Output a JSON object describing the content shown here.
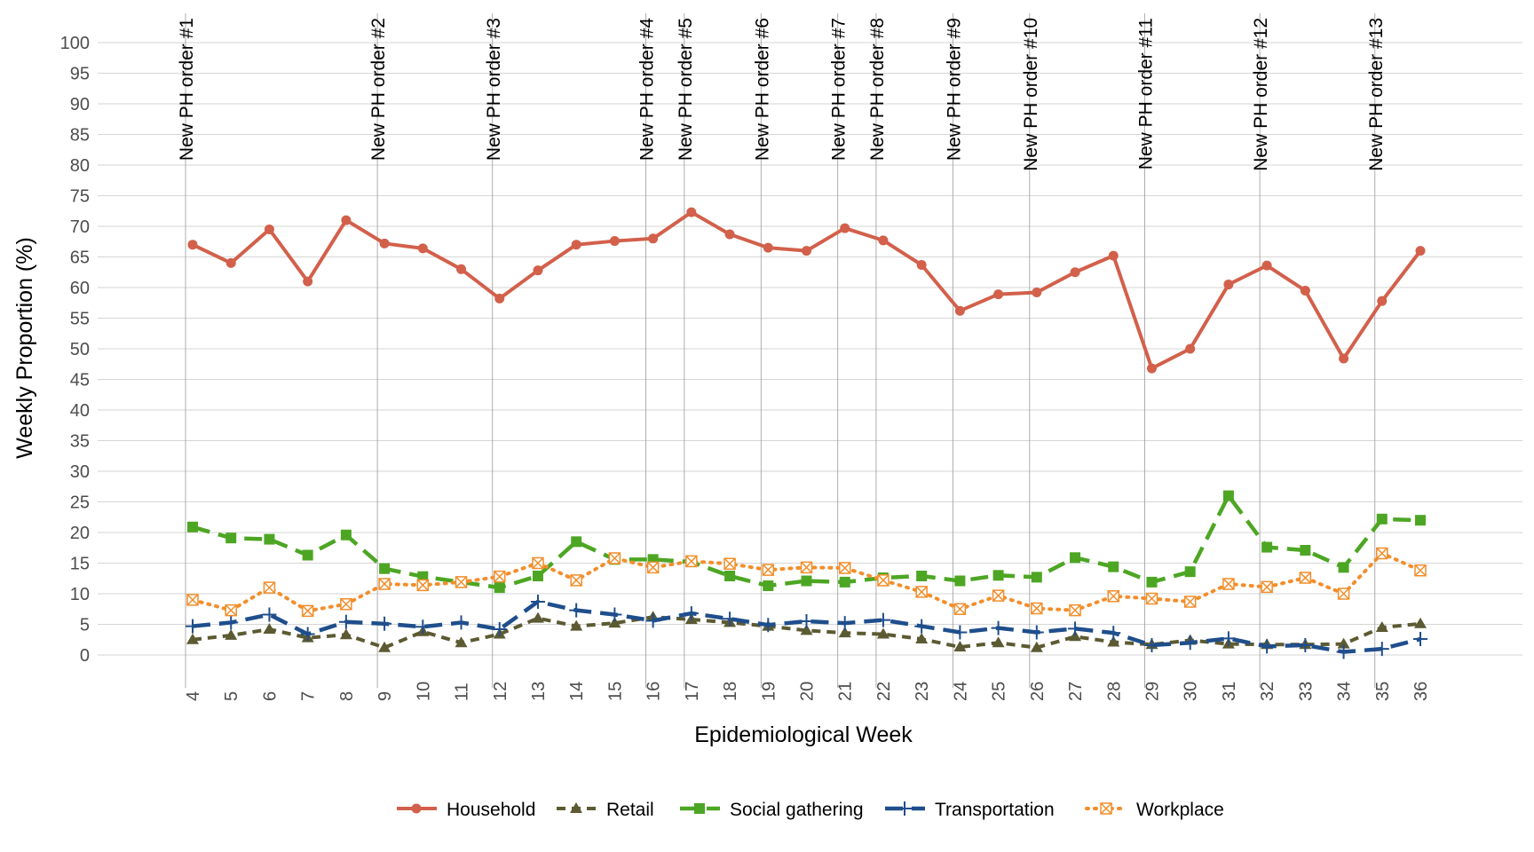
{
  "chart_data": {
    "type": "line",
    "xlabel": "Epidemiological Week",
    "ylabel": "Weekly Proportion (%)",
    "x": [
      4,
      5,
      6,
      7,
      8,
      9,
      10,
      11,
      12,
      13,
      14,
      15,
      16,
      17,
      18,
      19,
      20,
      21,
      22,
      23,
      24,
      25,
      26,
      27,
      28,
      29,
      30,
      31,
      32,
      33,
      34,
      35,
      36
    ],
    "xlim": [
      4,
      36
    ],
    "ylim": [
      -5,
      103
    ],
    "yticks": [
      0,
      5,
      10,
      15,
      20,
      25,
      30,
      35,
      40,
      45,
      50,
      55,
      60,
      65,
      70,
      75,
      80,
      85,
      90,
      95,
      100
    ],
    "grid": true,
    "legend_position": "bottom",
    "annotations": [
      {
        "x": 4,
        "label": "New PH order #1"
      },
      {
        "x": 9,
        "label": "New PH order #2"
      },
      {
        "x": 12,
        "label": "New PH order #3"
      },
      {
        "x": 16,
        "label": "New PH order #4"
      },
      {
        "x": 17,
        "label": "New PH order #5"
      },
      {
        "x": 19,
        "label": "New PH order #6"
      },
      {
        "x": 21,
        "label": "New PH order #7"
      },
      {
        "x": 22,
        "label": "New PH order #8"
      },
      {
        "x": 24,
        "label": "New PH order #9"
      },
      {
        "x": 26,
        "label": "New PH order #10"
      },
      {
        "x": 29,
        "label": "New PH order #11"
      },
      {
        "x": 32,
        "label": "New PH order #12"
      },
      {
        "x": 35,
        "label": "New PH order #13"
      }
    ],
    "series": [
      {
        "name": "Household",
        "color": "#D2604B",
        "marker": "circle",
        "dash": "solid",
        "values": [
          67,
          64,
          69.5,
          61,
          71,
          67.2,
          66.4,
          63,
          58.2,
          62.8,
          67,
          67.6,
          68,
          72.3,
          68.7,
          66.5,
          66,
          69.7,
          67.7,
          63.7,
          56.2,
          58.9,
          59.2,
          62.5,
          65.2,
          46.8,
          50,
          60.5,
          63.6,
          59.5,
          48.4,
          57.8,
          66
        ]
      },
      {
        "name": "Retail",
        "color": "#5C5A32",
        "marker": "triangle",
        "dash": "dashed",
        "values": [
          2.5,
          3.2,
          4.2,
          2.8,
          3.3,
          1.2,
          3.8,
          2,
          3.4,
          6,
          4.7,
          5.2,
          6.2,
          5.8,
          5.3,
          4.7,
          4,
          3.6,
          3.4,
          2.6,
          1.3,
          2,
          1.2,
          3,
          2.1,
          1.7,
          2.4,
          1.8,
          1.7,
          1.7,
          1.8,
          4.5,
          5.1
        ]
      },
      {
        "name": "Social gathering",
        "color": "#4DA623",
        "marker": "square",
        "dash": "longdash",
        "values": [
          20.9,
          19.1,
          18.9,
          16.3,
          19.6,
          14.1,
          12.8,
          11.9,
          11,
          12.9,
          18.5,
          15.6,
          15.6,
          15.2,
          12.9,
          11.3,
          12.1,
          11.9,
          12.6,
          12.9,
          12.1,
          13,
          12.7,
          15.9,
          14.4,
          11.9,
          13.6,
          26,
          17.6,
          17.1,
          14.3,
          22.2,
          22
        ]
      },
      {
        "name": "Transportation",
        "color": "#1F4E8C",
        "marker": "plus",
        "dash": "longdash",
        "values": [
          4.7,
          5.3,
          6.6,
          3.4,
          5.4,
          5.1,
          4.6,
          5.3,
          4.2,
          8.7,
          7.3,
          6.6,
          5.6,
          6.8,
          5.9,
          4.9,
          5.5,
          5.2,
          5.7,
          4.7,
          3.7,
          4.4,
          3.7,
          4.3,
          3.6,
          1.6,
          2,
          2.7,
          1.4,
          1.6,
          0.5,
          1,
          2.6
        ]
      },
      {
        "name": "Workplace",
        "color": "#F28E2B",
        "marker": "boxx",
        "dash": "dotted",
        "values": [
          9,
          7.3,
          11,
          7.2,
          8.3,
          11.6,
          11.4,
          11.9,
          12.8,
          15,
          12.2,
          15.8,
          14.3,
          15.3,
          14.9,
          13.9,
          14.3,
          14.2,
          12.2,
          10.3,
          7.5,
          9.7,
          7.6,
          7.3,
          9.6,
          9.2,
          8.7,
          11.6,
          11.1,
          12.6,
          10,
          16.6,
          13.8
        ]
      }
    ]
  }
}
